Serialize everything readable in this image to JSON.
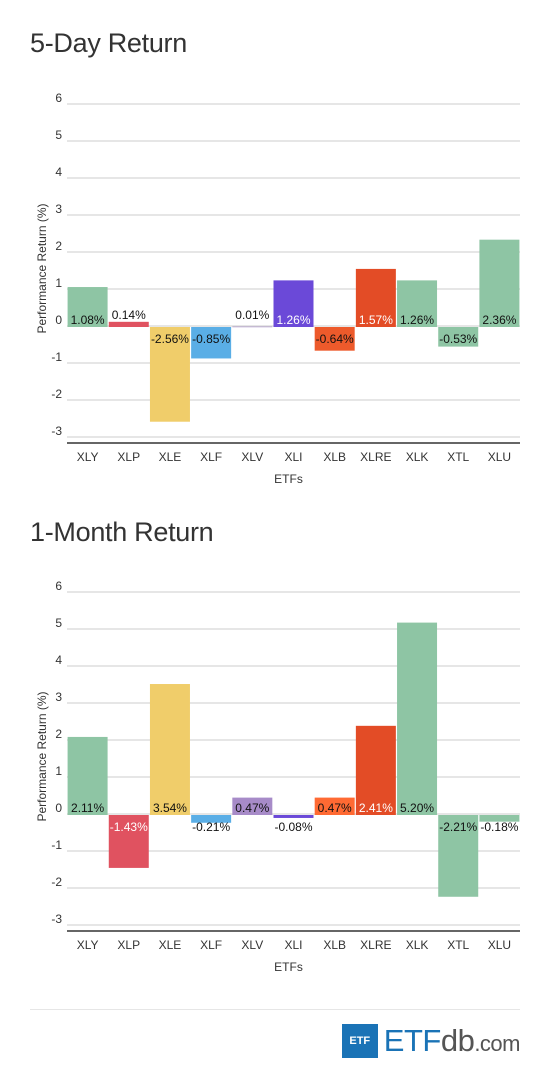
{
  "charts": [
    {
      "title": "5-Day Return",
      "chart_data": {
        "type": "bar",
        "title": "5-Day Return",
        "xlabel": "ETFs",
        "ylabel": "Performance Return (%)",
        "ylim": [
          -3,
          6
        ],
        "yticks": [
          6,
          5,
          4,
          3,
          2,
          1,
          0,
          -1,
          -2,
          -3
        ],
        "grid": true,
        "categories": [
          "XLY",
          "XLP",
          "XLE",
          "XLF",
          "XLV",
          "XLI",
          "XLB",
          "XLRE",
          "XLK",
          "XTL",
          "XLU"
        ],
        "values": [
          1.08,
          0.14,
          -2.56,
          -0.85,
          0.01,
          1.26,
          -0.64,
          1.57,
          1.26,
          -0.53,
          2.36
        ],
        "labels": [
          "1.08%",
          "0.14%",
          "-2.56%",
          "-0.85%",
          "0.01%",
          "1.26%",
          "-0.64%",
          "1.57%",
          "1.26%",
          "-0.53%",
          "2.36%"
        ],
        "colors": [
          "#8ec5a4",
          "#e05260",
          "#f0cd6a",
          "#5aaee6",
          "#a78bc8",
          "#6b49d8",
          "#ed5a2b",
          "#e34c26",
          "#8ec5a4",
          "#8ec5a4",
          "#8ec5a4"
        ],
        "label_colors": [
          "#111111",
          "#111111",
          "#111111",
          "#111111",
          "#111111",
          "#ffffff",
          "#111111",
          "#ffffff",
          "#111111",
          "#111111",
          "#111111"
        ]
      }
    },
    {
      "title": "1-Month Return",
      "chart_data": {
        "type": "bar",
        "title": "1-Month Return",
        "xlabel": "ETFs",
        "ylabel": "Performance Return (%)",
        "ylim": [
          -3,
          6
        ],
        "yticks": [
          6,
          5,
          4,
          3,
          2,
          1,
          0,
          -1,
          -2,
          -3
        ],
        "grid": true,
        "categories": [
          "XLY",
          "XLP",
          "XLE",
          "XLF",
          "XLV",
          "XLI",
          "XLB",
          "XLRE",
          "XLK",
          "XTL",
          "XLU"
        ],
        "values": [
          2.11,
          -1.43,
          3.54,
          -0.21,
          0.47,
          -0.08,
          0.47,
          2.41,
          5.2,
          -2.21,
          -0.18
        ],
        "labels": [
          "2.11%",
          "-1.43%",
          "3.54%",
          "-0.21%",
          "0.47%",
          "-0.08%",
          "0.47%",
          "2.41%",
          "5.20%",
          "-2.21%",
          "-0.18%"
        ],
        "colors": [
          "#8ec5a4",
          "#e05260",
          "#f0cd6a",
          "#5aaee6",
          "#a78bc8",
          "#6b49d8",
          "#ff6a33",
          "#e34c26",
          "#8ec5a4",
          "#8ec5a4",
          "#8ec5a4"
        ],
        "label_colors": [
          "#111111",
          "#ffffff",
          "#111111",
          "#111111",
          "#111111",
          "#111111",
          "#111111",
          "#ffffff",
          "#111111",
          "#111111",
          "#111111"
        ]
      }
    }
  ],
  "logo": {
    "box_text": "ETF",
    "brand": "ETF",
    "db": "db",
    "domain": ".com"
  }
}
